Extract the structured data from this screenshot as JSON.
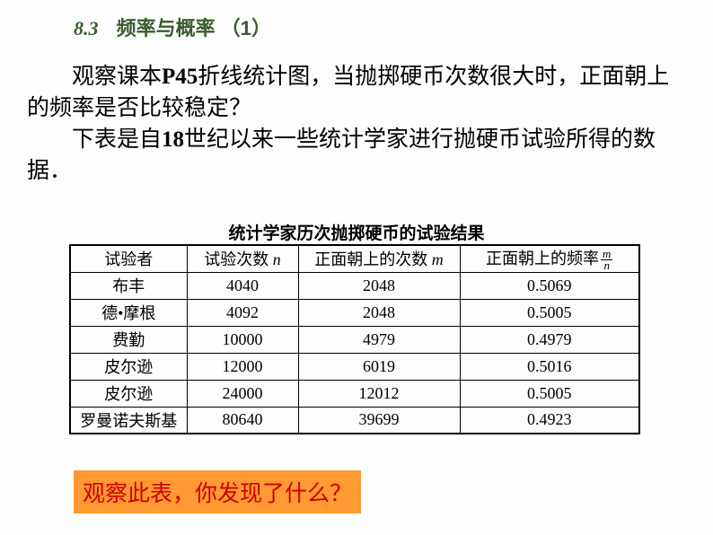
{
  "section": {
    "number": "8.3",
    "title_cn": "频率与概率",
    "paren": "（1）"
  },
  "paragraph": {
    "line1a": "观察课本",
    "line1b": "P45",
    "line1c": "折线统计图，当抛掷硬币次数很大时，正面朝上的频率是否比较稳定？",
    "line2a": "下表是自",
    "line2b": "18",
    "line2c": "世纪以来一些统计学家进行抛硬币试验所得的数据．"
  },
  "table": {
    "title": "统计学家历次抛掷硬币的试验结果",
    "headers": {
      "h1": "试验者",
      "h2a": "试验次数",
      "h2b": "n",
      "h3a": "正面朝上的次数",
      "h3b": "m",
      "h4a": "正面朝上的频率",
      "h4_top": "m",
      "h4_bot": "n"
    },
    "rows": [
      {
        "c1": "布丰",
        "c2": "4040",
        "c3": "2048",
        "c4": "0.5069"
      },
      {
        "c1": "德•摩根",
        "c2": "4092",
        "c3": "2048",
        "c4": "0.5005"
      },
      {
        "c1": "费勤",
        "c2": "10000",
        "c3": "4979",
        "c4": "0.4979"
      },
      {
        "c1": "皮尔逊",
        "c2": "12000",
        "c3": "6019",
        "c4": "0.5016"
      },
      {
        "c1": "皮尔逊",
        "c2": "24000",
        "c3": "12012",
        "c4": "0.5005"
      },
      {
        "c1": "罗曼诺夫斯基",
        "c2": "80640",
        "c3": "39699",
        "c4": "0.4923"
      }
    ]
  },
  "highlight": "观察此表，你发现了什么？"
}
